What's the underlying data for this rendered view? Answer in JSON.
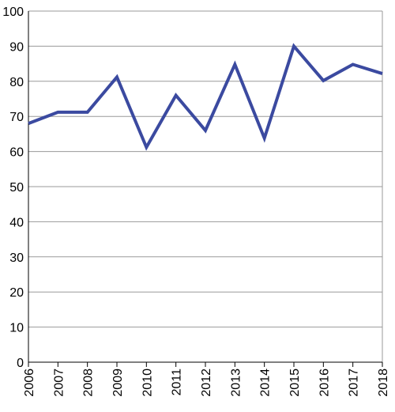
{
  "chart_data": {
    "type": "line",
    "title": "",
    "xlabel": "",
    "ylabel": "",
    "categories": [
      "2006",
      "2007",
      "2008",
      "2009",
      "2010",
      "2011",
      "2012",
      "2013",
      "2014",
      "2015",
      "2016",
      "2017",
      "2018"
    ],
    "series": [
      {
        "values": [
          68,
          71.2,
          71.2,
          81.2,
          61.2,
          76,
          66,
          84.8,
          63.8,
          90,
          80.2,
          84.8,
          82.2
        ],
        "color": "#3b4aa0"
      }
    ],
    "ylim": [
      0,
      100
    ],
    "yticks": [
      0,
      10,
      20,
      30,
      40,
      50,
      60,
      70,
      80,
      90,
      100
    ],
    "grid": "horizontal",
    "legend": "none"
  }
}
